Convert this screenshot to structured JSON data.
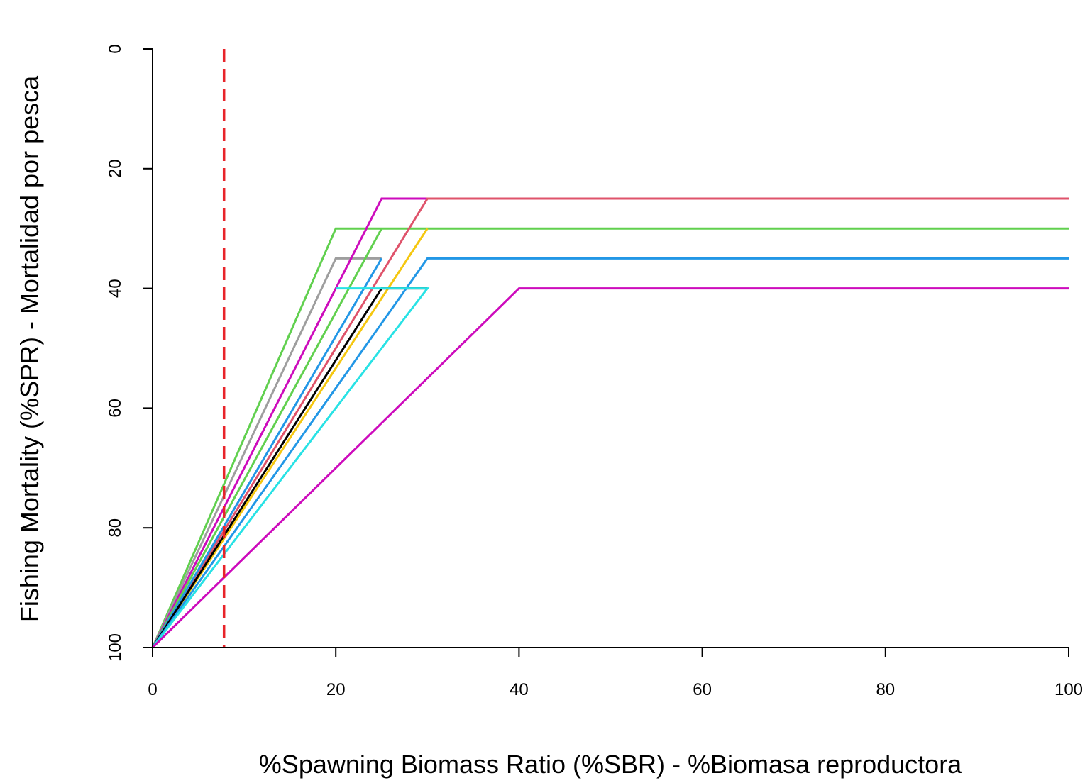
{
  "chart_data": {
    "type": "line",
    "title": "",
    "xlabel": "%Spawning Biomass Ratio (%SBR) - %Biomasa reproductora",
    "ylabel": "Fishing Mortality (%SPR) - Mortalidad por pesca",
    "xlim": [
      0,
      100
    ],
    "ylim": [
      0,
      100
    ],
    "y_axis_reversed": true,
    "grid": false,
    "legend": "none",
    "x_ticks": [
      "0",
      "20",
      "40",
      "60",
      "80",
      "100"
    ],
    "y_ticks": [
      "0",
      "20",
      "40",
      "60",
      "80",
      "100"
    ],
    "reference_line": {
      "x": 7.8,
      "color": "#e8242a",
      "style": "dashed"
    },
    "series": [
      {
        "color": "#61d04f",
        "points": [
          [
            0,
            100
          ],
          [
            20,
            30
          ],
          [
            100,
            30
          ]
        ]
      },
      {
        "color": "#9e9e9e",
        "points": [
          [
            0,
            100
          ],
          [
            20,
            35
          ],
          [
            25,
            35
          ]
        ]
      },
      {
        "color": "#cd0bbc",
        "points": [
          [
            0,
            100
          ],
          [
            25,
            25
          ],
          [
            30,
            25
          ]
        ]
      },
      {
        "color": "#61d04f",
        "points": [
          [
            0,
            100
          ],
          [
            25,
            30
          ]
        ]
      },
      {
        "color": "#df536b",
        "points": [
          [
            0,
            100
          ],
          [
            30,
            25
          ],
          [
            100,
            25
          ]
        ]
      },
      {
        "color": "#2297e6",
        "points": [
          [
            0,
            100
          ],
          [
            25,
            35
          ]
        ]
      },
      {
        "color": "#f5c710",
        "points": [
          [
            0,
            100
          ],
          [
            30,
            30
          ]
        ]
      },
      {
        "color": "#000000",
        "points": [
          [
            0,
            100
          ],
          [
            25,
            40
          ],
          [
            30,
            40
          ]
        ]
      },
      {
        "color": "#2297e6",
        "points": [
          [
            0,
            100
          ],
          [
            30,
            35
          ],
          [
            100,
            35
          ]
        ]
      },
      {
        "color": "#28e2e5",
        "points": [
          [
            0,
            100
          ],
          [
            30,
            40
          ],
          [
            20,
            40
          ]
        ]
      },
      {
        "color": "#cd0bbc",
        "points": [
          [
            0,
            100
          ],
          [
            40,
            40
          ],
          [
            100,
            40
          ]
        ]
      }
    ]
  }
}
